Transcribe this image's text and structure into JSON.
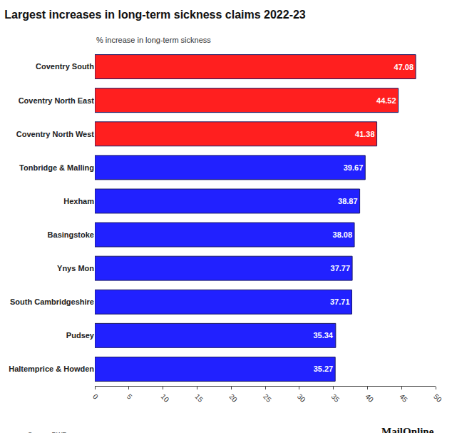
{
  "chart_data": {
    "type": "bar",
    "orientation": "horizontal",
    "title": "Largest increases in long-term sickness claims 2022-23",
    "subtitle": "% increase in long-term sickness",
    "categories": [
      "Coventry South",
      "Coventry North East",
      "Coventry North West",
      "Tonbridge & Malling",
      "Hexham",
      "Basingstoke",
      "Ynys Mon",
      "South Cambridgeshire",
      "Pudsey",
      "Haltemprice & Howden"
    ],
    "values": [
      47.08,
      44.52,
      41.38,
      39.67,
      38.87,
      38.08,
      37.77,
      37.71,
      35.34,
      35.27
    ],
    "colors": [
      "#ff1f1f",
      "#ff1f1f",
      "#ff1f1f",
      "#2121ff",
      "#2121ff",
      "#2121ff",
      "#2121ff",
      "#2121ff",
      "#2121ff",
      "#2121ff"
    ],
    "xlim": [
      0,
      50
    ],
    "xticks": [
      0,
      5,
      10,
      15,
      20,
      25,
      30,
      35,
      40,
      45,
      50
    ],
    "grid": false,
    "data_labels": true,
    "annotations": [
      "Source: DWP",
      "MailOnline"
    ]
  }
}
